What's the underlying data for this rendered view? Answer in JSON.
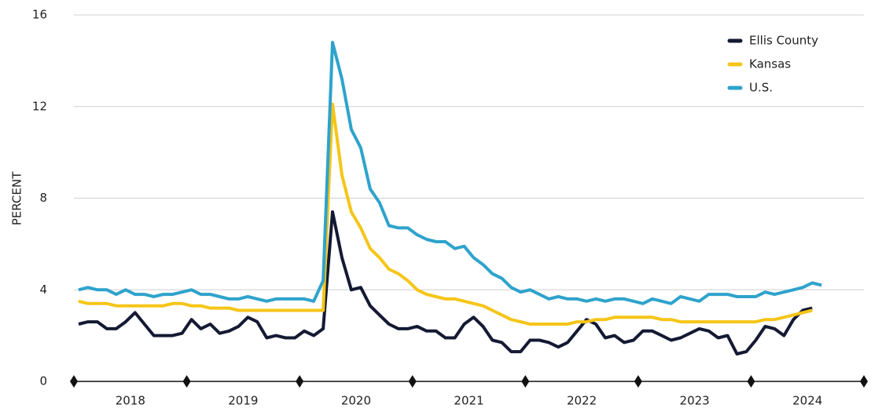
{
  "chart_data": {
    "type": "line",
    "y_label": "PERCENT",
    "categories": [
      "2018",
      "2019",
      "2020",
      "2021",
      "2022",
      "2023",
      "2024"
    ],
    "ylim": [
      0,
      16
    ],
    "yticks": [
      0,
      4,
      8,
      12,
      16
    ],
    "grid": true,
    "legend": "top-right",
    "series": [
      {
        "name": "Ellis County",
        "color": "#141a33",
        "values": [
          [
            2.5,
            2.6,
            2.6,
            2.3,
            2.3,
            2.6,
            3.0,
            2.5,
            2.0,
            2.0,
            2.0,
            2.1
          ],
          [
            2.7,
            2.3,
            2.5,
            2.1,
            2.2,
            2.4,
            2.8,
            2.6,
            1.9,
            2.0,
            1.9,
            1.9
          ],
          [
            2.2,
            2.0,
            2.3,
            7.4,
            5.4,
            4.0,
            4.1,
            3.3,
            2.9,
            2.5,
            2.3,
            2.3
          ],
          [
            2.4,
            2.2,
            2.2,
            1.9,
            1.9,
            2.5,
            2.8,
            2.4,
            1.8,
            1.7,
            1.3,
            1.3
          ],
          [
            1.8,
            1.8,
            1.7,
            1.5,
            1.7,
            2.2,
            2.7,
            2.5,
            1.9,
            2.0,
            1.7,
            1.8
          ],
          [
            2.2,
            2.2,
            2.0,
            1.8,
            1.9,
            2.1,
            2.3,
            2.2,
            1.9,
            2.0,
            1.2,
            1.3
          ],
          [
            1.8,
            2.4,
            2.3,
            2.0,
            2.7,
            3.1,
            3.2,
            null,
            null,
            null,
            null,
            null
          ]
        ]
      },
      {
        "name": "Kansas",
        "color": "#f5c518",
        "values": [
          [
            3.5,
            3.4,
            3.4,
            3.4,
            3.3,
            3.3,
            3.3,
            3.3,
            3.3,
            3.3,
            3.4,
            3.4
          ],
          [
            3.3,
            3.3,
            3.2,
            3.2,
            3.2,
            3.1,
            3.1,
            3.1,
            3.1,
            3.1,
            3.1,
            3.1
          ],
          [
            3.1,
            3.1,
            3.1,
            12.1,
            9.0,
            7.4,
            6.7,
            5.8,
            5.4,
            4.9,
            4.7,
            4.4
          ],
          [
            4.0,
            3.8,
            3.7,
            3.6,
            3.6,
            3.5,
            3.4,
            3.3,
            3.1,
            2.9,
            2.7,
            2.6
          ],
          [
            2.5,
            2.5,
            2.5,
            2.5,
            2.5,
            2.6,
            2.6,
            2.7,
            2.7,
            2.8,
            2.8,
            2.8
          ],
          [
            2.8,
            2.8,
            2.7,
            2.7,
            2.6,
            2.6,
            2.6,
            2.6,
            2.6,
            2.6,
            2.6,
            2.6
          ],
          [
            2.6,
            2.7,
            2.7,
            2.8,
            2.9,
            3.0,
            3.1,
            null,
            null,
            null,
            null,
            null
          ]
        ]
      },
      {
        "name": "U.S.",
        "color": "#2ea3cc",
        "values": [
          [
            4.0,
            4.1,
            4.0,
            4.0,
            3.8,
            4.0,
            3.8,
            3.8,
            3.7,
            3.8,
            3.8,
            3.9
          ],
          [
            4.0,
            3.8,
            3.8,
            3.7,
            3.6,
            3.6,
            3.7,
            3.6,
            3.5,
            3.6,
            3.6,
            3.6
          ],
          [
            3.6,
            3.5,
            4.4,
            14.8,
            13.2,
            11.0,
            10.2,
            8.4,
            7.8,
            6.8,
            6.7,
            6.7
          ],
          [
            6.4,
            6.2,
            6.1,
            6.1,
            5.8,
            5.9,
            5.4,
            5.1,
            4.7,
            4.5,
            4.1,
            3.9
          ],
          [
            4.0,
            3.8,
            3.6,
            3.7,
            3.6,
            3.6,
            3.5,
            3.6,
            3.5,
            3.6,
            3.6,
            3.5
          ],
          [
            3.4,
            3.6,
            3.5,
            3.4,
            3.7,
            3.6,
            3.5,
            3.8,
            3.8,
            3.8,
            3.7,
            3.7
          ],
          [
            3.7,
            3.9,
            3.8,
            3.9,
            4.0,
            4.1,
            4.3,
            4.2,
            null,
            null,
            null,
            null
          ]
        ]
      }
    ]
  }
}
